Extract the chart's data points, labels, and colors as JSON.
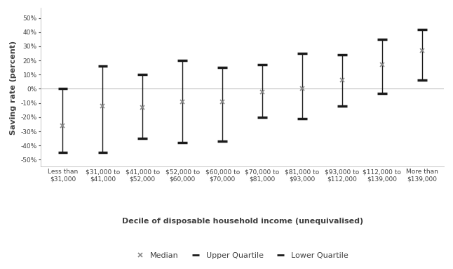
{
  "categories": [
    "Less than\n$31,000",
    "$31,000 to\n$41,000",
    "$41,000 to\n$52,000",
    "$52,000 to\n$60,000",
    "$60,000 to\n$70,000",
    "$70,000 to\n$81,000",
    "$81,000 to\n$93,000",
    "$93,000 to\n$112,000",
    "$112,000 to\n$139,000",
    "More than\n$139,000"
  ],
  "median": [
    -26,
    -12,
    -13,
    -9,
    -9,
    -2,
    0,
    6,
    17,
    27
  ],
  "upper_quartile": [
    0,
    16,
    10,
    20,
    15,
    17,
    25,
    24,
    35,
    42
  ],
  "lower_quartile": [
    -45,
    -45,
    -35,
    -38,
    -37,
    -20,
    -21,
    -12,
    -3,
    6
  ],
  "ylabel": "Saving rate (percent)",
  "xlabel": "Decile of disposable household income (unequivalised)",
  "ylim": [
    -55,
    57
  ],
  "yticks": [
    -50,
    -40,
    -30,
    -20,
    -10,
    0,
    10,
    20,
    30,
    40,
    50
  ],
  "line_color": "#1a1a1a",
  "marker_color": "#888888",
  "text_color": "#404040",
  "background_color": "#ffffff",
  "zero_line_color": "#c0c0c0",
  "tick_label_fontsize": 6.5,
  "axis_label_fontsize": 8,
  "legend_fontsize": 8
}
